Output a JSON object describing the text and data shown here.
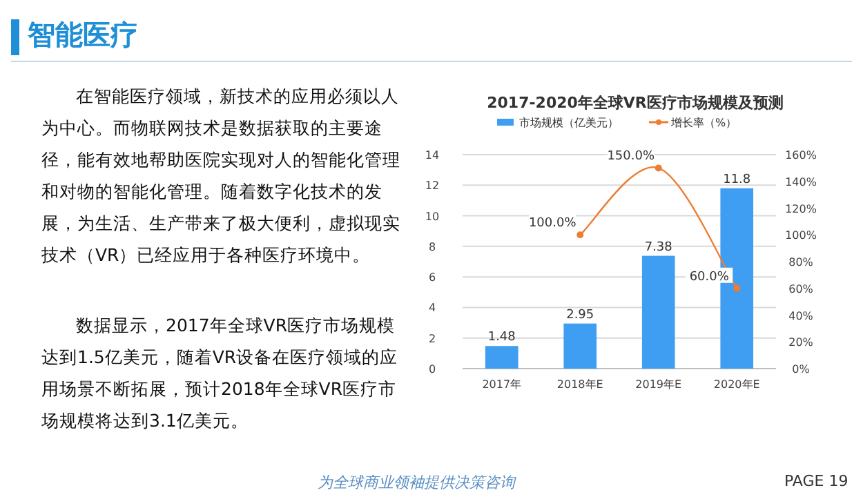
{
  "chart_data": {
    "type": "bar",
    "title": "2017-2020年全球VR医疗市场规模及预测",
    "categories": [
      "2017年",
      "2018年E",
      "2019年E",
      "2020年E"
    ],
    "series": [
      {
        "name": "市场规模（亿美元）",
        "color": "#3f9ef2",
        "values": [
          1.48,
          2.95,
          7.38,
          11.8
        ],
        "value_labels": [
          "1.48",
          "2.95",
          "7.38",
          "11.8"
        ]
      },
      {
        "name": "增长率（%）",
        "type": "line",
        "axis": "y2",
        "color": "#ed7d31",
        "marker": "circle",
        "values": [
          null,
          100,
          150,
          60
        ],
        "value_labels": [
          null,
          "100.0%",
          "150.0%",
          "60.0%"
        ]
      }
    ],
    "ylim": [
      0,
      14
    ],
    "yticks": [
      0,
      2,
      4,
      6,
      8,
      10,
      12,
      14
    ],
    "y2lim": [
      0,
      160
    ],
    "y2ticks": [
      {
        "value": 0,
        "label": "0%"
      },
      {
        "value": 20,
        "label": "20%"
      },
      {
        "value": 40,
        "label": "40%"
      },
      {
        "value": 60,
        "label": "60%"
      },
      {
        "value": 80,
        "label": "80%"
      },
      {
        "value": 100,
        "label": "100%"
      },
      {
        "value": 120,
        "label": "120%"
      },
      {
        "value": 140,
        "label": "140%"
      },
      {
        "value": 160,
        "label": "160%"
      }
    ],
    "grid": "y",
    "legend": "top",
    "annotations": [
      "智能医疗",
      "在智能医疗领域，新技术的应用必须以人为中心。而物联网技术是数据获取的主要途径，能有效地帮助医院实现对人的智能化管理和对物的智能化管理。随着数字化技术的发展，为生活、生产带来了极大便利，虚拟现实技术（VR）已经应用于各种医疗环境中。",
      "数据显示，2017年全球VR医疗市场规模达到1.5亿美元，随着VR设备在医疗领域的应用场景不断拓展，预计2018年全球VR医疗市场规模将达到3.1亿美元。",
      "为全球商业领袖提供决策咨询",
      "PAGE 19"
    ]
  }
}
